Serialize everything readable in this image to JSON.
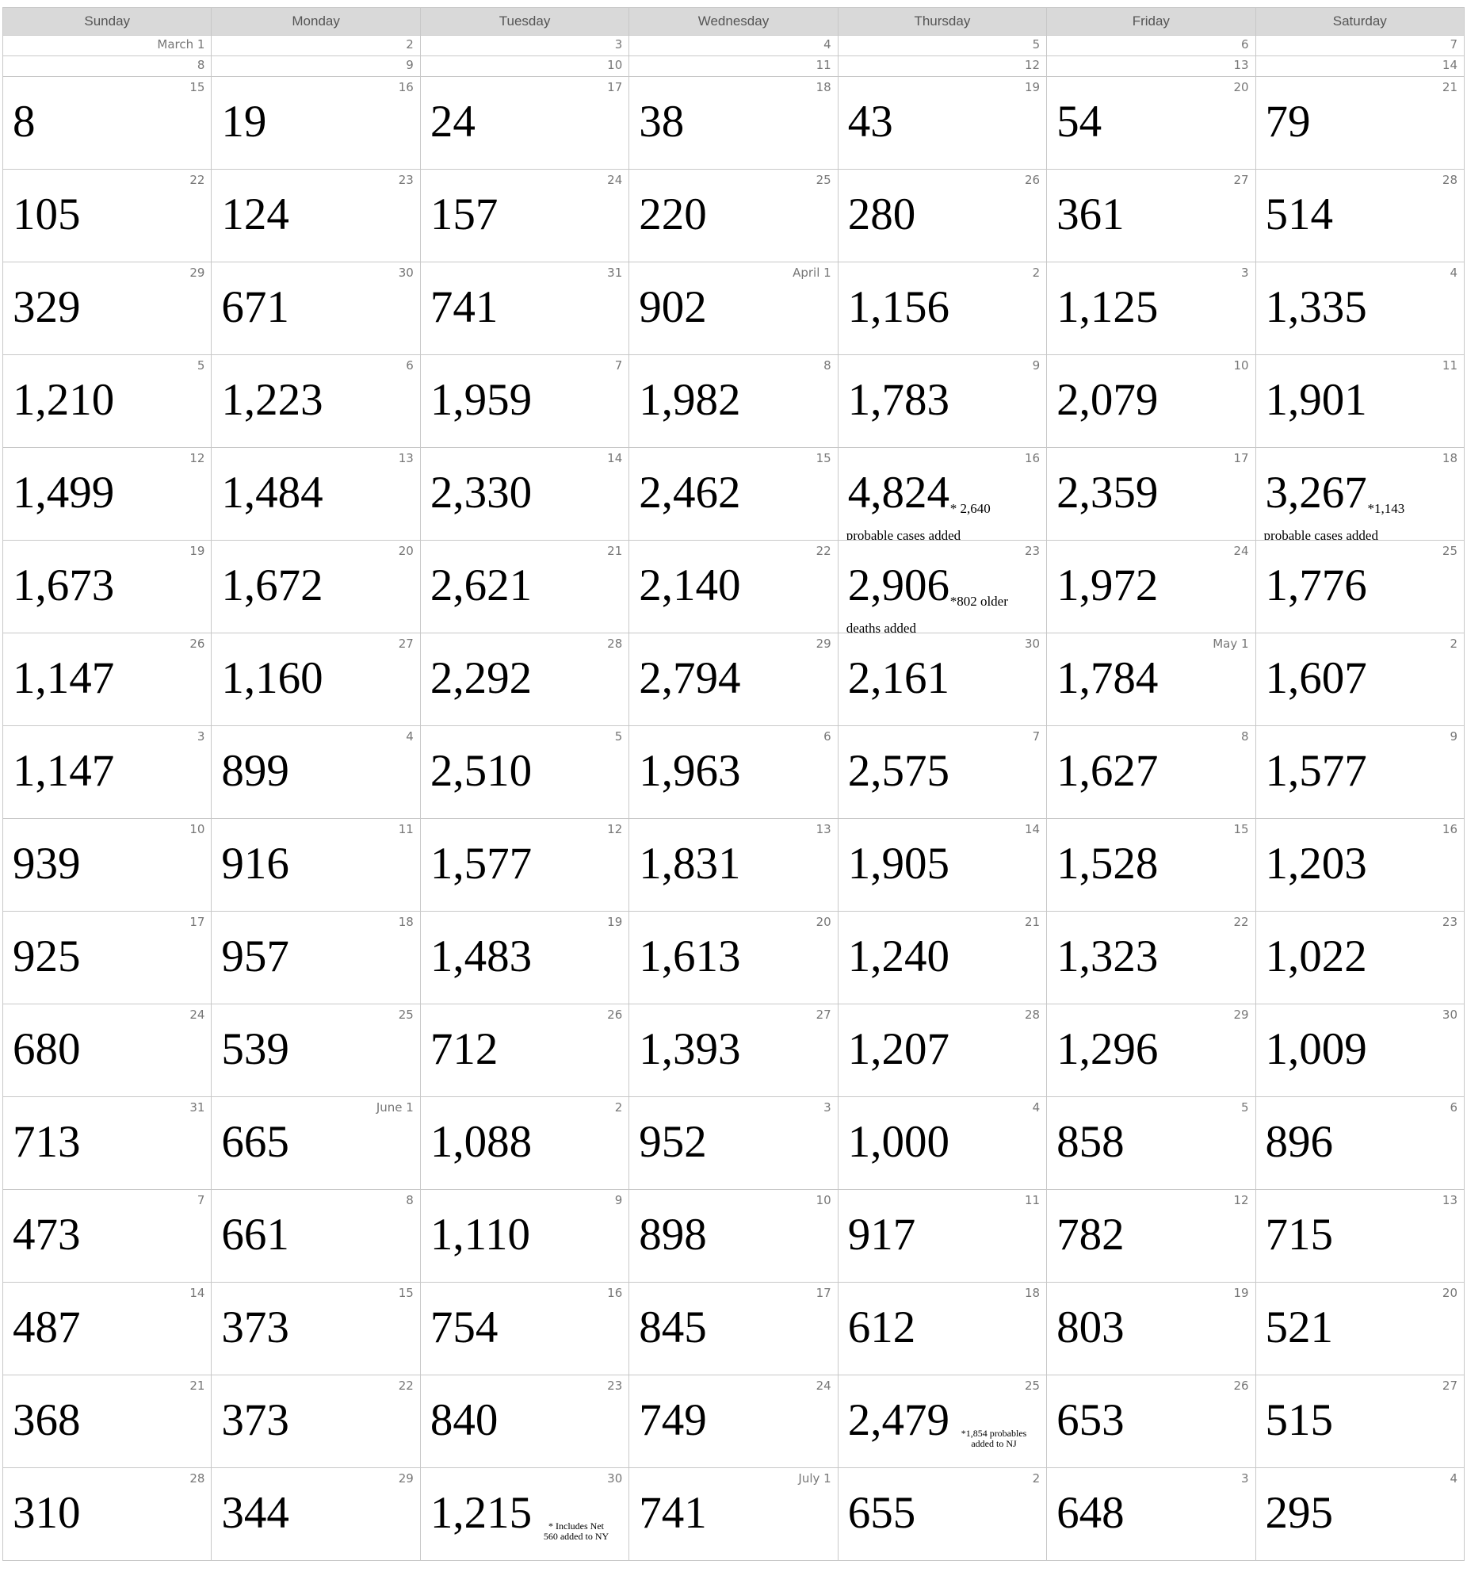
{
  "weekdays": [
    "Sunday",
    "Monday",
    "Tuesday",
    "Wednesday",
    "Thursday",
    "Friday",
    "Saturday"
  ],
  "weeks": [
    [
      {
        "day": "March 1"
      },
      {
        "day": "2"
      },
      {
        "day": "3"
      },
      {
        "day": "4"
      },
      {
        "day": "5"
      },
      {
        "day": "6"
      },
      {
        "day": "7"
      }
    ],
    [
      {
        "day": "8"
      },
      {
        "day": "9"
      },
      {
        "day": "10"
      },
      {
        "day": "11"
      },
      {
        "day": "12"
      },
      {
        "day": "13"
      },
      {
        "day": "14"
      }
    ],
    [
      {
        "day": "15",
        "value": "8"
      },
      {
        "day": "16",
        "value": "19"
      },
      {
        "day": "17",
        "value": "24"
      },
      {
        "day": "18",
        "value": "38"
      },
      {
        "day": "19",
        "value": "43"
      },
      {
        "day": "20",
        "value": "54"
      },
      {
        "day": "21",
        "value": "79"
      }
    ],
    [
      {
        "day": "22",
        "value": "105"
      },
      {
        "day": "23",
        "value": "124"
      },
      {
        "day": "24",
        "value": "157"
      },
      {
        "day": "25",
        "value": "220"
      },
      {
        "day": "26",
        "value": "280"
      },
      {
        "day": "27",
        "value": "361"
      },
      {
        "day": "28",
        "value": "514"
      }
    ],
    [
      {
        "day": "29",
        "value": "329"
      },
      {
        "day": "30",
        "value": "671"
      },
      {
        "day": "31",
        "value": "741"
      },
      {
        "day": "April 1",
        "value": "902"
      },
      {
        "day": "2",
        "value": "1,156"
      },
      {
        "day": "3",
        "value": "1,125"
      },
      {
        "day": "4",
        "value": "1,335"
      }
    ],
    [
      {
        "day": "5",
        "value": "1,210"
      },
      {
        "day": "6",
        "value": "1,223"
      },
      {
        "day": "7",
        "value": "1,959"
      },
      {
        "day": "8",
        "value": "1,982"
      },
      {
        "day": "9",
        "value": "1,783"
      },
      {
        "day": "10",
        "value": "2,079"
      },
      {
        "day": "11",
        "value": "1,901"
      }
    ],
    [
      {
        "day": "12",
        "value": "1,499"
      },
      {
        "day": "13",
        "value": "1,484"
      },
      {
        "day": "14",
        "value": "2,330"
      },
      {
        "day": "15",
        "value": "2,462"
      },
      {
        "day": "16",
        "value": "4,824",
        "note_inline": "* 2,640",
        "note_next": "probable cases added"
      },
      {
        "day": "17",
        "value": "2,359"
      },
      {
        "day": "18",
        "value": "3,267",
        "note_inline": "*1,143",
        "note_next": "probable cases added"
      }
    ],
    [
      {
        "day": "19",
        "value": "1,673"
      },
      {
        "day": "20",
        "value": "1,672"
      },
      {
        "day": "21",
        "value": "2,621"
      },
      {
        "day": "22",
        "value": "2,140"
      },
      {
        "day": "23",
        "value": "2,906",
        "note_inline": "*802 older",
        "note_next": "deaths added"
      },
      {
        "day": "24",
        "value": "1,972"
      },
      {
        "day": "25",
        "value": "1,776"
      }
    ],
    [
      {
        "day": "26",
        "value": "1,147"
      },
      {
        "day": "27",
        "value": "1,160"
      },
      {
        "day": "28",
        "value": "2,292"
      },
      {
        "day": "29",
        "value": "2,794"
      },
      {
        "day": "30",
        "value": "2,161"
      },
      {
        "day": "May 1",
        "value": "1,784"
      },
      {
        "day": "2",
        "value": "1,607"
      }
    ],
    [
      {
        "day": "3",
        "value": "1,147"
      },
      {
        "day": "4",
        "value": "899"
      },
      {
        "day": "5",
        "value": "2,510"
      },
      {
        "day": "6",
        "value": "1,963"
      },
      {
        "day": "7",
        "value": "2,575"
      },
      {
        "day": "8",
        "value": "1,627"
      },
      {
        "day": "9",
        "value": "1,577"
      }
    ],
    [
      {
        "day": "10",
        "value": "939"
      },
      {
        "day": "11",
        "value": "916"
      },
      {
        "day": "12",
        "value": "1,577"
      },
      {
        "day": "13",
        "value": "1,831"
      },
      {
        "day": "14",
        "value": "1,905"
      },
      {
        "day": "15",
        "value": "1,528"
      },
      {
        "day": "16",
        "value": "1,203"
      }
    ],
    [
      {
        "day": "17",
        "value": "925"
      },
      {
        "day": "18",
        "value": "957"
      },
      {
        "day": "19",
        "value": "1,483"
      },
      {
        "day": "20",
        "value": "1,613"
      },
      {
        "day": "21",
        "value": "1,240"
      },
      {
        "day": "22",
        "value": "1,323"
      },
      {
        "day": "23",
        "value": "1,022"
      }
    ],
    [
      {
        "day": "24",
        "value": "680"
      },
      {
        "day": "25",
        "value": "539"
      },
      {
        "day": "26",
        "value": "712"
      },
      {
        "day": "27",
        "value": "1,393"
      },
      {
        "day": "28",
        "value": "1,207"
      },
      {
        "day": "29",
        "value": "1,296"
      },
      {
        "day": "30",
        "value": "1,009"
      }
    ],
    [
      {
        "day": "31",
        "value": "713"
      },
      {
        "day": "June 1",
        "value": "665"
      },
      {
        "day": "2",
        "value": "1,088"
      },
      {
        "day": "3",
        "value": "952"
      },
      {
        "day": "4",
        "value": "1,000"
      },
      {
        "day": "5",
        "value": "858"
      },
      {
        "day": "6",
        "value": "896"
      }
    ],
    [
      {
        "day": "7",
        "value": "473"
      },
      {
        "day": "8",
        "value": "661"
      },
      {
        "day": "9",
        "value": "1,110"
      },
      {
        "day": "10",
        "value": "898"
      },
      {
        "day": "11",
        "value": "917"
      },
      {
        "day": "12",
        "value": "782"
      },
      {
        "day": "13",
        "value": "715"
      }
    ],
    [
      {
        "day": "14",
        "value": "487"
      },
      {
        "day": "15",
        "value": "373"
      },
      {
        "day": "16",
        "value": "754"
      },
      {
        "day": "17",
        "value": "845"
      },
      {
        "day": "18",
        "value": "612"
      },
      {
        "day": "19",
        "value": "803"
      },
      {
        "day": "20",
        "value": "521"
      }
    ],
    [
      {
        "day": "21",
        "value": "368"
      },
      {
        "day": "22",
        "value": "373"
      },
      {
        "day": "23",
        "value": "840"
      },
      {
        "day": "24",
        "value": "749"
      },
      {
        "day": "25",
        "value": "2,479",
        "note_small": [
          "*1,854 probables",
          "added to NJ"
        ]
      },
      {
        "day": "26",
        "value": "653"
      },
      {
        "day": "27",
        "value": "515"
      }
    ],
    [
      {
        "day": "28",
        "value": "310"
      },
      {
        "day": "29",
        "value": "344"
      },
      {
        "day": "30",
        "value": "1,215",
        "note_small": [
          "* Includes Net",
          "560 added to NY"
        ]
      },
      {
        "day": "July 1",
        "value": "741"
      },
      {
        "day": "2",
        "value": "655"
      },
      {
        "day": "3",
        "value": "648"
      },
      {
        "day": "4",
        "value": "295"
      }
    ]
  ]
}
